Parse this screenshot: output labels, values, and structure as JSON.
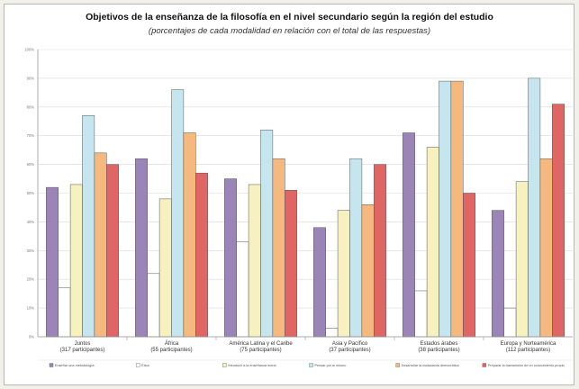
{
  "chart_data": {
    "type": "bar",
    "title": "Objetivos de la enseñanza de la filosofía en el nivel secundario según la región del estudio",
    "subtitle": "(porcentajes de cada modalidad en relación con el total de las respuestas)",
    "ylim": [
      0,
      100
    ],
    "yticks": [
      "0%",
      "10%",
      "20%",
      "30%",
      "40%",
      "50%",
      "60%",
      "70%",
      "80%",
      "90%",
      "100%"
    ],
    "grid": true,
    "legend_position": "bottom",
    "categories": [
      "Juntos\n(317 participantes)",
      "África\n(55 participantes)",
      "América Latina y el Caribe\n(75 participantes)",
      "Asia y Pacífico\n(37 participantes)",
      "Estados árabes\n(38 participantes)",
      "Europa y Norteamérica\n(112 participantes)"
    ],
    "series": [
      {
        "name": "Enseñar una metodología",
        "color": "#9b84b8",
        "values": [
          52,
          62,
          55,
          38,
          71,
          44
        ]
      },
      {
        "name": "Ética",
        "color": "#ffffff",
        "values": [
          17,
          22,
          33,
          3,
          16,
          10
        ]
      },
      {
        "name": "Introducir a la enseñanza moral",
        "color": "#f6f1bf",
        "values": [
          53,
          48,
          53,
          44,
          66,
          54
        ]
      },
      {
        "name": "Pensar por sí mismo",
        "color": "#c6e6ef",
        "values": [
          77,
          86,
          72,
          62,
          89,
          90
        ]
      },
      {
        "name": "Desarrollar la ciudadanía democrática",
        "color": "#f5b97f",
        "values": [
          64,
          71,
          62,
          46,
          89,
          62
        ]
      },
      {
        "name": "Preparar la transmisión de un conocimiento propio",
        "color": "#e06565",
        "values": [
          60,
          57,
          51,
          60,
          50,
          81
        ]
      }
    ]
  }
}
